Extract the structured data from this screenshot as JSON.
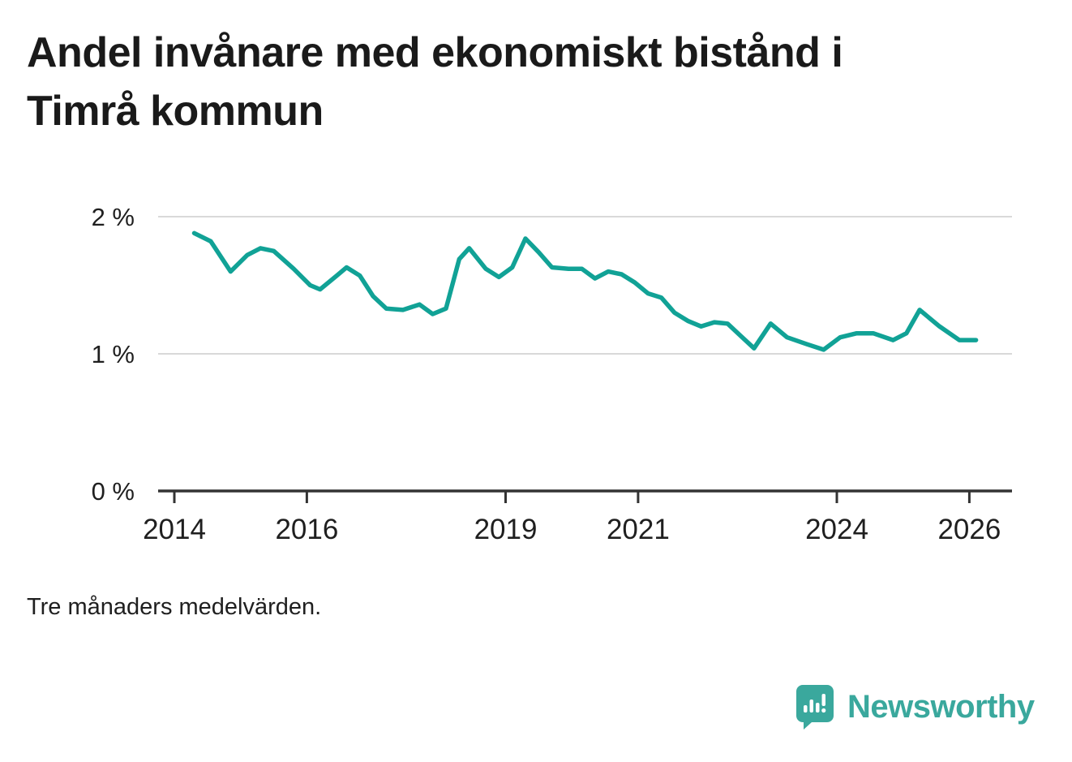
{
  "header": {
    "title": "Andel invånare med ekonomiskt bistånd i Timrå kommun"
  },
  "note": "Tre månaders medelvärden.",
  "branding": {
    "name": "Newsworthy",
    "color": "#3aa89d"
  },
  "chart_data": {
    "type": "line",
    "title": "Andel invånare med ekonomiskt bistånd i Timrå kommun",
    "subtitle": "Tre månaders medelvärden.",
    "xlabel": "",
    "ylabel": "",
    "unit": "%",
    "grid": true,
    "legend_position": "none",
    "line_color": "#11a296",
    "axis_color": "#333333",
    "gridline_color": "#d9d9d9",
    "xlim": [
      2013.75,
      2026.6
    ],
    "ylim": [
      0,
      2.2
    ],
    "x_ticks": [
      2014,
      2016,
      2019,
      2021,
      2024,
      2026
    ],
    "y_ticks": [
      {
        "value": 0,
        "label": "0 %"
      },
      {
        "value": 1,
        "label": "1 %"
      },
      {
        "value": 2,
        "label": "2 %"
      }
    ],
    "series": [
      {
        "name": "Andel invånare med ekonomiskt bistånd, Timrå kommun",
        "x": [
          2014.3,
          2014.55,
          2014.85,
          2015.1,
          2015.3,
          2015.5,
          2015.8,
          2016.05,
          2016.2,
          2016.45,
          2016.6,
          2016.8,
          2017.0,
          2017.2,
          2017.45,
          2017.7,
          2017.9,
          2018.1,
          2018.3,
          2018.45,
          2018.7,
          2018.9,
          2019.1,
          2019.3,
          2019.5,
          2019.7,
          2019.95,
          2020.15,
          2020.35,
          2020.55,
          2020.75,
          2020.95,
          2021.15,
          2021.35,
          2021.55,
          2021.75,
          2021.95,
          2022.15,
          2022.35,
          2022.55,
          2022.75,
          2023.0,
          2023.25,
          2023.55,
          2023.8,
          2024.05,
          2024.3,
          2024.55,
          2024.85,
          2025.05,
          2025.25,
          2025.55,
          2025.85,
          2026.1
        ],
        "values": [
          1.88,
          1.82,
          1.6,
          1.72,
          1.77,
          1.75,
          1.62,
          1.5,
          1.47,
          1.57,
          1.63,
          1.57,
          1.42,
          1.33,
          1.32,
          1.36,
          1.29,
          1.33,
          1.69,
          1.77,
          1.62,
          1.56,
          1.63,
          1.84,
          1.74,
          1.63,
          1.62,
          1.62,
          1.55,
          1.6,
          1.58,
          1.52,
          1.44,
          1.41,
          1.3,
          1.24,
          1.2,
          1.23,
          1.22,
          1.13,
          1.04,
          1.22,
          1.12,
          1.07,
          1.03,
          1.12,
          1.15,
          1.15,
          1.1,
          1.15,
          1.32,
          1.2,
          1.1,
          1.1
        ]
      }
    ]
  }
}
